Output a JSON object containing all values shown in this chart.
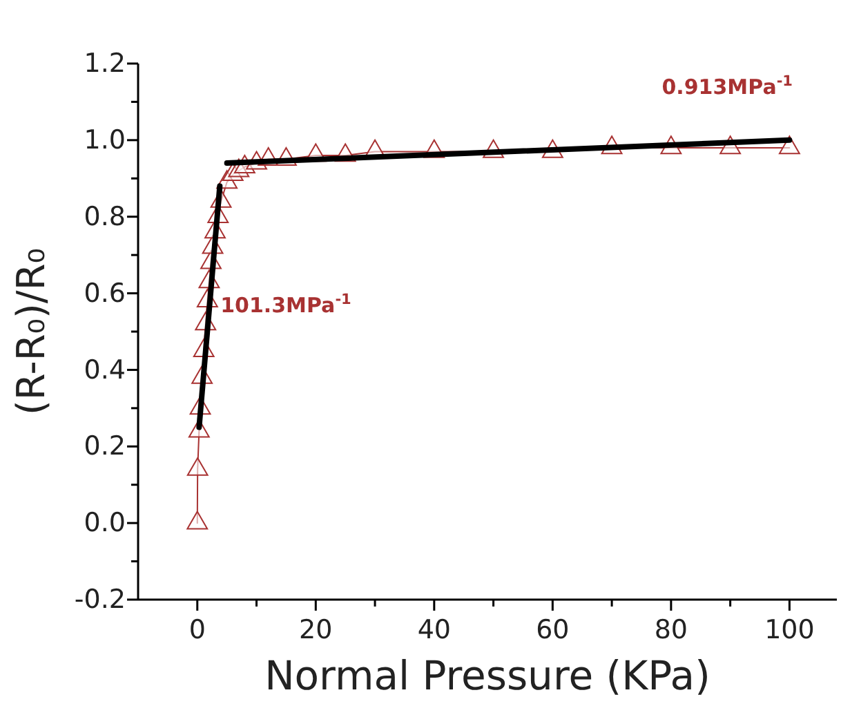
{
  "chart_data": {
    "type": "line",
    "xlabel": "Normal Pressure (KPa)",
    "ylabel": "(R-R₀)/R₀",
    "xlim": [
      -10,
      108
    ],
    "xticks": [
      0,
      {
        "value": 10,
        "label": null
      },
      20,
      {
        "value": 30,
        "label": null
      },
      40,
      {
        "value": 50,
        "label": null
      },
      60,
      {
        "value": 70,
        "label": null
      },
      80,
      {
        "value": 90,
        "label": null
      },
      100
    ],
    "ylim": [
      -0.2,
      1.2
    ],
    "yticks": [
      {
        "value": -0.2,
        "label": "-0.2"
      },
      {
        "value": -0.1,
        "label": null
      },
      {
        "value": 0,
        "label": "0.0"
      },
      {
        "value": 0.1,
        "label": null
      },
      {
        "value": 0.2,
        "label": "0.2"
      },
      {
        "value": 0.3,
        "label": null
      },
      {
        "value": 0.4,
        "label": "0.4"
      },
      {
        "value": 0.5,
        "label": null
      },
      {
        "value": 0.6,
        "label": "0.6"
      },
      {
        "value": 0.7,
        "label": null
      },
      {
        "value": 0.8,
        "label": "0.8"
      },
      {
        "value": 0.9,
        "label": null
      },
      {
        "value": 1.0,
        "label": "1.0"
      },
      {
        "value": 1.1,
        "label": null
      },
      {
        "value": 1.2,
        "label": "1.2"
      }
    ],
    "grid": false,
    "series": [
      {
        "marker": "triangle",
        "color": "#a83232",
        "x": [
          0,
          0.05,
          0.3,
          0.5,
          0.8,
          1.1,
          1.4,
          1.7,
          2.0,
          2.3,
          2.6,
          3.0,
          3.5,
          4,
          5,
          6,
          7,
          8,
          10,
          12,
          15,
          20,
          25,
          30,
          40,
          50,
          60,
          70,
          80,
          90,
          100
        ],
        "values": [
          0,
          0.14,
          0.24,
          0.3,
          0.38,
          0.45,
          0.52,
          0.58,
          0.63,
          0.68,
          0.72,
          0.76,
          0.8,
          0.84,
          0.89,
          0.91,
          0.92,
          0.93,
          0.94,
          0.95,
          0.95,
          0.96,
          0.96,
          0.97,
          0.97,
          0.97,
          0.97,
          0.98,
          0.98,
          0.98,
          0.98
        ]
      },
      {
        "type": "line",
        "marker": "none",
        "color": "#000000",
        "x": [
          0.3,
          3.8
        ],
        "values": [
          0.25,
          0.88
        ]
      },
      {
        "type": "line",
        "marker": "none",
        "color": "#000000",
        "x": [
          5,
          100
        ],
        "values": [
          0.94,
          1.0
        ]
      }
    ],
    "annotations": [
      {
        "text": "101.3MPa$^{-1}$",
        "x": 2.5,
        "y": 0.55
      },
      "0.913MPa$^{-1}$"
    ]
  }
}
